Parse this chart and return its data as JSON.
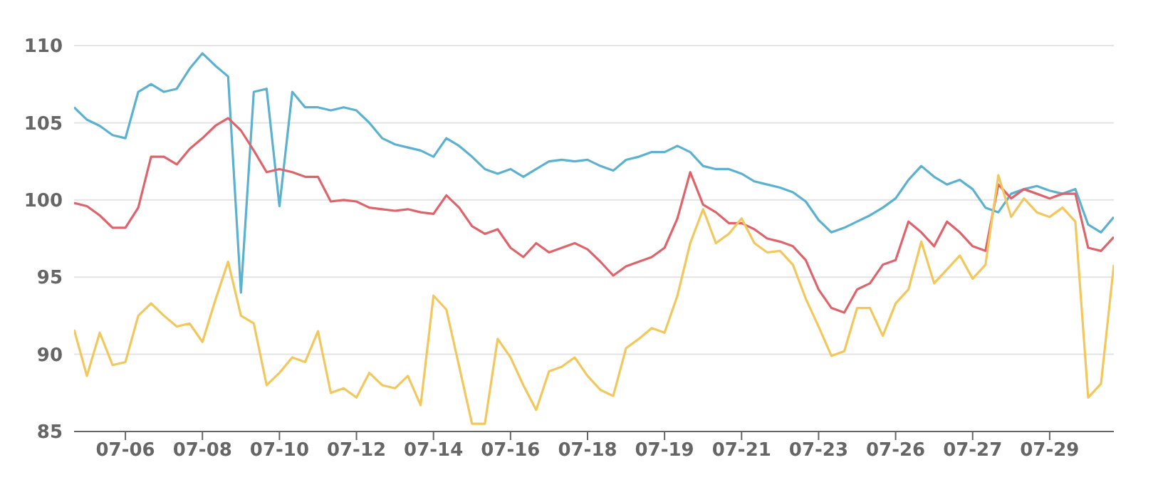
{
  "chart_data": {
    "type": "line",
    "categories": [
      null,
      null,
      null,
      null,
      "07-06",
      null,
      null,
      null,
      null,
      null,
      "07-08",
      null,
      null,
      null,
      null,
      null,
      "07-10",
      null,
      null,
      null,
      null,
      null,
      "07-12",
      null,
      null,
      null,
      null,
      null,
      "07-14",
      null,
      null,
      null,
      null,
      null,
      "07-16",
      null,
      null,
      null,
      null,
      null,
      "07-18",
      null,
      null,
      null,
      null,
      null,
      "07-19",
      null,
      null,
      null,
      null,
      null,
      "07-21",
      null,
      null,
      null,
      null,
      null,
      "07-23",
      null,
      null,
      null,
      null,
      null,
      "07-26",
      null,
      null,
      null,
      null,
      null,
      "07-27",
      null,
      null,
      null,
      null,
      null,
      "07-29",
      null,
      null,
      null,
      null,
      null
    ],
    "series": [
      {
        "color": "#5ab1d0",
        "values": [
          106.0,
          105.2,
          104.8,
          104.2,
          104.0,
          107.0,
          107.5,
          107.0,
          107.2,
          108.5,
          109.5,
          108.7,
          108.0,
          94.0,
          107.0,
          107.2,
          99.6,
          107.0,
          106.0,
          106.0,
          105.8,
          106.0,
          105.8,
          105.0,
          104.0,
          103.6,
          103.4,
          103.2,
          102.8,
          104.0,
          103.5,
          102.8,
          102.0,
          101.7,
          102.0,
          101.5,
          102.0,
          102.5,
          102.6,
          102.5,
          102.6,
          102.2,
          101.9,
          102.6,
          102.8,
          103.1,
          103.1,
          103.5,
          103.1,
          102.2,
          102.0,
          102.0,
          101.7,
          101.2,
          101.0,
          100.8,
          100.5,
          99.9,
          98.7,
          97.9,
          98.2,
          98.6,
          99.0,
          99.5,
          100.1,
          101.3,
          102.2,
          101.5,
          101.0,
          101.3,
          100.7,
          99.5,
          99.2,
          100.4,
          100.7,
          100.9,
          100.6,
          100.4,
          100.7,
          98.4,
          97.9,
          98.9
        ]
      },
      {
        "color": "#e0636b",
        "values": [
          99.8,
          99.6,
          99.0,
          98.2,
          98.2,
          99.5,
          102.8,
          102.8,
          102.3,
          103.3,
          104.0,
          104.8,
          105.3,
          104.5,
          103.2,
          101.8,
          102.0,
          101.8,
          101.5,
          101.5,
          99.9,
          100.0,
          99.9,
          99.5,
          99.4,
          99.3,
          99.4,
          99.2,
          99.1,
          100.3,
          99.5,
          98.3,
          97.8,
          98.1,
          96.9,
          96.3,
          97.2,
          96.6,
          96.9,
          97.2,
          96.8,
          96.0,
          95.1,
          95.7,
          96.0,
          96.3,
          96.9,
          98.8,
          101.8,
          99.7,
          99.2,
          98.5,
          98.5,
          98.1,
          97.5,
          97.3,
          97.0,
          96.1,
          94.2,
          93.0,
          92.7,
          94.2,
          94.6,
          95.8,
          96.1,
          98.6,
          97.9,
          97.0,
          98.6,
          97.9,
          97.0,
          96.7,
          101.0,
          100.1,
          100.7,
          100.4,
          100.1,
          100.4,
          100.4,
          96.9,
          96.7,
          97.6
        ]
      },
      {
        "color": "#f2c75c",
        "values": [
          91.6,
          88.6,
          91.4,
          89.3,
          89.5,
          92.5,
          93.3,
          92.5,
          91.8,
          92.0,
          90.8,
          93.5,
          96.0,
          92.5,
          92.0,
          88.0,
          88.8,
          89.8,
          89.5,
          91.5,
          87.5,
          87.8,
          87.2,
          88.8,
          88.0,
          87.8,
          88.6,
          86.7,
          93.8,
          92.9,
          89.2,
          85.5,
          85.5,
          91.0,
          89.8,
          88.0,
          86.4,
          88.9,
          89.2,
          89.8,
          88.6,
          87.7,
          87.3,
          90.4,
          91.0,
          91.7,
          91.4,
          93.8,
          97.2,
          99.4,
          97.2,
          97.8,
          98.8,
          97.2,
          96.6,
          96.7,
          95.8,
          93.6,
          91.8,
          89.9,
          90.2,
          93.0,
          93.0,
          91.2,
          93.3,
          94.2,
          97.3,
          94.6,
          95.5,
          96.4,
          94.9,
          95.8,
          101.6,
          98.9,
          100.1,
          99.2,
          98.9,
          99.5,
          98.6,
          87.2,
          88.1,
          95.8
        ]
      }
    ],
    "ylim": [
      85,
      110
    ],
    "yticks": [
      85,
      90,
      95,
      100,
      105,
      110
    ],
    "grid": "y",
    "marker": "none",
    "line_style": "solid",
    "legend": false
  }
}
